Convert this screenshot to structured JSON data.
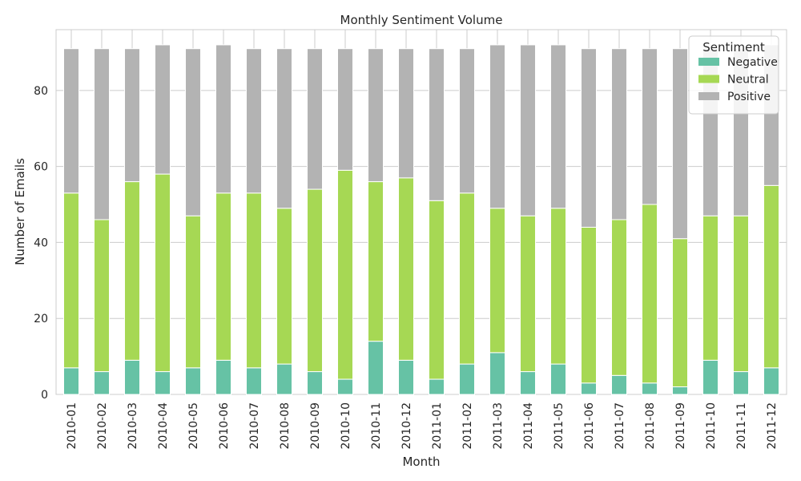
{
  "chart_data": {
    "type": "bar",
    "stacked": true,
    "title": "Monthly Sentiment Volume",
    "xlabel": "Month",
    "ylabel": "Number of Emails",
    "ylim": [
      0,
      96
    ],
    "yticks": [
      0,
      20,
      40,
      60,
      80
    ],
    "grid": true,
    "legend": {
      "title": "Sentiment",
      "placement": "top-right"
    },
    "categories": [
      "2010-01",
      "2010-02",
      "2010-03",
      "2010-04",
      "2010-05",
      "2010-06",
      "2010-07",
      "2010-08",
      "2010-09",
      "2010-10",
      "2010-11",
      "2010-12",
      "2011-01",
      "2011-02",
      "2011-03",
      "2011-04",
      "2011-05",
      "2011-06",
      "2011-07",
      "2011-08",
      "2011-09",
      "2011-10",
      "2011-11",
      "2011-12"
    ],
    "series": [
      {
        "name": "Negative",
        "color": "#66c2a5",
        "values": [
          7,
          6,
          9,
          6,
          7,
          9,
          7,
          8,
          6,
          4,
          14,
          9,
          4,
          8,
          11,
          6,
          8,
          3,
          5,
          3,
          2,
          9,
          6,
          7
        ]
      },
      {
        "name": "Neutral",
        "color": "#a6d854",
        "values": [
          46,
          40,
          47,
          52,
          40,
          44,
          46,
          41,
          48,
          55,
          42,
          48,
          47,
          45,
          38,
          41,
          41,
          41,
          41,
          47,
          39,
          38,
          41,
          48
        ]
      },
      {
        "name": "Positive",
        "color": "#b3b3b3",
        "values": [
          38,
          45,
          35,
          34,
          44,
          39,
          38,
          42,
          37,
          32,
          35,
          34,
          40,
          38,
          43,
          45,
          43,
          47,
          45,
          41,
          50,
          44,
          44,
          37
        ]
      }
    ]
  }
}
